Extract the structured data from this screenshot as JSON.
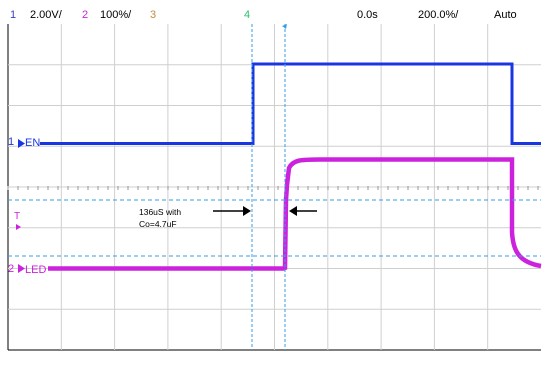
{
  "status_bar": {
    "ch1_number": "1",
    "ch1_scale": "2.00V/",
    "ch2_number": "2",
    "ch2_scale": "100%/",
    "ch3_number": "3",
    "ch4_number": "4",
    "time_offset": "0.0s",
    "timebase": "200.0%/",
    "trigger_mode": "Auto"
  },
  "channels": [
    {
      "id": "ch1",
      "marker": "1",
      "label": "EN",
      "color": "#1a36e0"
    },
    {
      "id": "ch2",
      "marker": "2",
      "label": "LED",
      "color": "#cc22dd"
    }
  ],
  "trigger_marker": "T",
  "annotation": {
    "line1": "136uS with",
    "line2": "Co=4.7uF"
  },
  "colors": {
    "ch1": "#1a36e0",
    "ch2": "#cc22dd",
    "ch3": "#c08a3a",
    "ch4": "#2bc06a",
    "ch_number": "#3b3bd0",
    "cursor": "#3a9ee6",
    "grid": "#cfcfcf",
    "trigger": "#cc22dd"
  },
  "icons": {
    "trigger_position": "trigger-position-diamond-icon",
    "arrow_right": "arrow-right-icon",
    "arrow_left": "arrow-left-icon"
  }
}
